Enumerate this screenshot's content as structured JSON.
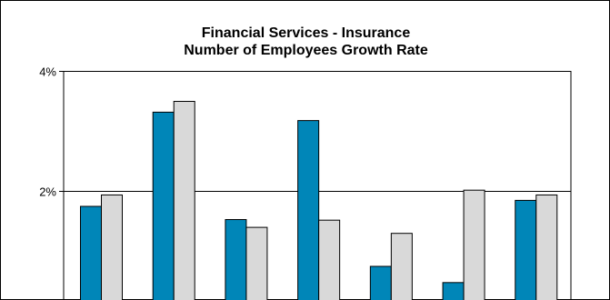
{
  "chart_data": {
    "type": "bar",
    "title_lines": [
      "Financial Services - Insurance",
      "Number of Employees Growth Rate"
    ],
    "y_ticks": [
      "4%",
      "2%"
    ],
    "y_tick_values": [
      4,
      2
    ],
    "ylim_visible": [
      0,
      4
    ],
    "grid": true,
    "categories": [
      "",
      "",
      "",
      "",
      "",
      "",
      ""
    ],
    "series": [
      {
        "values": [
          1.75,
          3.32,
          1.53,
          3.18,
          0.75,
          0.48,
          1.85
        ],
        "color": "#0086B8"
      },
      {
        "values": [
          1.94,
          3.5,
          1.4,
          1.52,
          1.3,
          2.02,
          1.94
        ],
        "color": "#D9D9D9"
      }
    ]
  }
}
